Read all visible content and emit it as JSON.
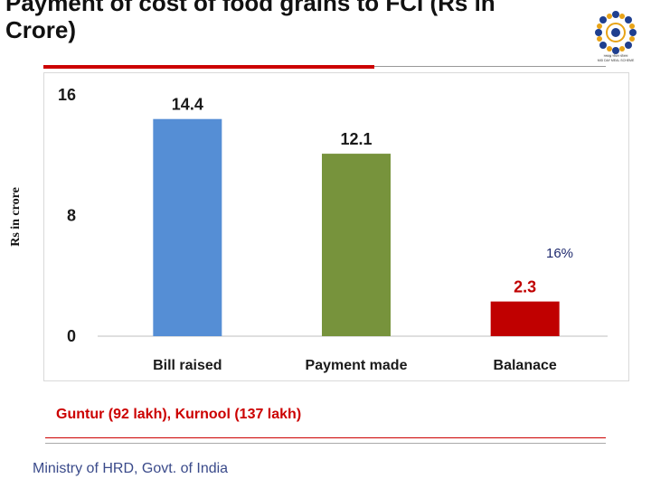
{
  "slide": {
    "title": "Payment of cost of food grains to FCI (Rs in Crore)",
    "annotation": "16%",
    "footnote": "Guntur (92 lakh), Kurnool (137 lakh)",
    "footer": "Ministry of HRD, Govt. of India"
  },
  "logo": {
    "icon": "mid-day-meal-emblem",
    "caption_lines": [
      "मध्याह्न भोजन योजना",
      "MID DAY MEAL SCHEME"
    ]
  },
  "chart_data": {
    "type": "bar",
    "categories": [
      "Bill raised",
      "Payment made",
      "Balanace"
    ],
    "values": [
      14.4,
      12.1,
      2.3
    ],
    "data_labels": [
      "14.4",
      "12.1",
      "2.3"
    ],
    "colors": [
      "#558ed5",
      "#77933c",
      "#c00000"
    ],
    "label_colors": [
      "#1a1a1a",
      "#1a1a1a",
      "#c00000"
    ],
    "ylabel": "Rs in crore",
    "xlabel": "",
    "ylim": [
      0,
      16
    ],
    "yticks": [
      0,
      8,
      16
    ],
    "grid": false
  }
}
